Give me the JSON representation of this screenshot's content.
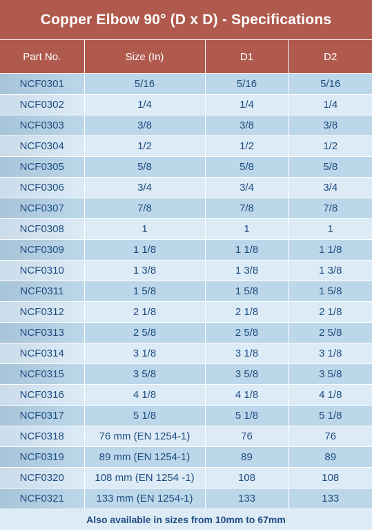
{
  "title": "Copper Elbow 90° (D x D) - Specifications",
  "columns": [
    "Part No.",
    "Size (In)",
    "D1",
    "D2"
  ],
  "rows": [
    [
      "NCF0301",
      "5/16",
      "5/16",
      "5/16"
    ],
    [
      "NCF0302",
      "1/4",
      "1/4",
      "1/4"
    ],
    [
      "NCF0303",
      "3/8",
      "3/8",
      "3/8"
    ],
    [
      "NCF0304",
      "1/2",
      "1/2",
      "1/2"
    ],
    [
      "NCF0305",
      "5/8",
      "5/8",
      "5/8"
    ],
    [
      "NCF0306",
      "3/4",
      "3/4",
      "3/4"
    ],
    [
      "NCF0307",
      "7/8",
      "7/8",
      "7/8"
    ],
    [
      "NCF0308",
      "1",
      "1",
      "1"
    ],
    [
      "NCF0309",
      "1 1/8",
      "1 1/8",
      "1 1/8"
    ],
    [
      "NCF0310",
      "1 3/8",
      "1 3/8",
      "1 3/8"
    ],
    [
      "NCF0311",
      "1 5/8",
      "1 5/8",
      "1 5/8"
    ],
    [
      "NCF0312",
      "2 1/8",
      "2 1/8",
      "2 1/8"
    ],
    [
      "NCF0313",
      "2 5/8",
      "2 5/8",
      "2 5/8"
    ],
    [
      "NCF0314",
      "3 1/8",
      "3 1/8",
      "3 1/8"
    ],
    [
      "NCF0315",
      "3 5/8",
      "3 5/8",
      "3 5/8"
    ],
    [
      "NCF0316",
      "4 1/8",
      "4 1/8",
      "4 1/8"
    ],
    [
      "NCF0317",
      "5 1/8",
      "5 1/8",
      "5 1/8"
    ],
    [
      "NCF0318",
      "76 mm (EN 1254-1)",
      "76",
      "76"
    ],
    [
      "NCF0319",
      "89 mm (EN 1254-1)",
      "89",
      "89"
    ],
    [
      "NCF0320",
      "108 mm (EN 1254 -1)",
      "108",
      "108"
    ],
    [
      "NCF0321",
      "133 mm (EN 1254-1)",
      "133",
      "133"
    ]
  ],
  "footer": "Also available in sizes from 10mm to 67mm",
  "colors": {
    "header_bg": "#b05a4e",
    "row_light": "#dcebf6",
    "row_dark": "#bcd7ea",
    "text": "#1f4d80"
  }
}
